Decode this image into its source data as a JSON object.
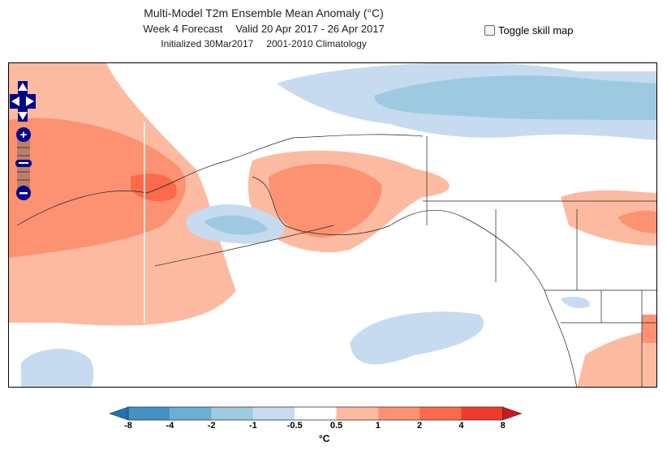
{
  "title": {
    "line1": "Multi-Model T2m Ensemble Mean Anomaly (°C)",
    "forecast": "Week 4 Forecast",
    "valid": "Valid 20 Apr 2017 - 26 Apr 2017",
    "initialized": "Initialized 30Mar2017",
    "climatology": "2001-2010 Climatology"
  },
  "toggle": {
    "label": "Toggle skill map",
    "checked": false
  },
  "colorbar": {
    "unit": "°C",
    "ticks": [
      "-8",
      "-4",
      "-2",
      "-1",
      "-0.5",
      "0.5",
      "1",
      "2",
      "4",
      "8"
    ],
    "colors": [
      "#4292c6",
      "#6baed6",
      "#9ecae1",
      "#c6dbef",
      "#ffffff",
      "#fcbba1",
      "#fc9272",
      "#fb6a4a",
      "#ef3b2c"
    ],
    "under": "#2171b5",
    "over": "#cb181d"
  },
  "map_controls": {
    "pan": [
      "up",
      "left",
      "right",
      "down"
    ],
    "zoom": [
      "zoom-in",
      "zoom-out"
    ]
  }
}
